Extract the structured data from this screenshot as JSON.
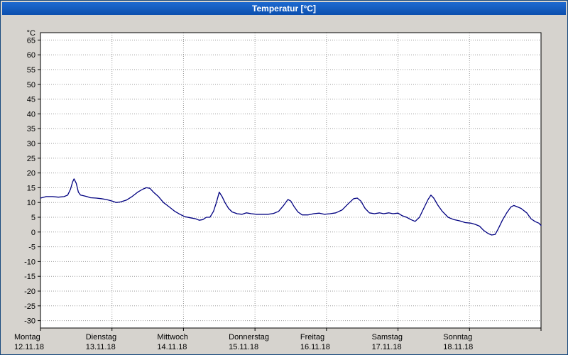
{
  "window": {
    "title": "Temperatur [°C]"
  },
  "colors": {
    "titlebar_top": "#1e6ad0",
    "titlebar_bottom": "#0c4fae",
    "line": "#000080",
    "grid": "#999999",
    "plot_background": "#ffffff",
    "plot_border": "#000000"
  },
  "chart_data": {
    "type": "line",
    "title": "Temperatur [°C]",
    "ylabel": "°C",
    "xlabel": "",
    "ylim": [
      -32.5,
      67.5
    ],
    "ytick_min": -30,
    "ytick_max": 65,
    "ytick_step": 5,
    "grid": "dotted",
    "legend": "none",
    "x_days": [
      {
        "name": "Montag",
        "date": "12.11.18"
      },
      {
        "name": "Dienstag",
        "date": "13.11.18"
      },
      {
        "name": "Mittwoch",
        "date": "14.11.18"
      },
      {
        "name": "Donnerstag",
        "date": "15.11.18"
      },
      {
        "name": "Freitag",
        "date": "16.11.18"
      },
      {
        "name": "Samstag",
        "date": "17.11.18"
      },
      {
        "name": "Sonntag",
        "date": "18.11.18"
      }
    ],
    "series": [
      {
        "name": "Temperatur",
        "color": "#000080",
        "points": [
          [
            0.0,
            11.5
          ],
          [
            0.08,
            12
          ],
          [
            0.17,
            12
          ],
          [
            0.25,
            11.8
          ],
          [
            0.33,
            12
          ],
          [
            0.38,
            12.5
          ],
          [
            0.42,
            14.5
          ],
          [
            0.45,
            17
          ],
          [
            0.47,
            18
          ],
          [
            0.5,
            16.5
          ],
          [
            0.53,
            13.5
          ],
          [
            0.56,
            12.5
          ],
          [
            0.6,
            12.3
          ],
          [
            0.65,
            12
          ],
          [
            0.7,
            11.6
          ],
          [
            0.78,
            11.5
          ],
          [
            0.85,
            11.3
          ],
          [
            0.92,
            11
          ],
          [
            1.0,
            10.5
          ],
          [
            1.06,
            10
          ],
          [
            1.12,
            10.2
          ],
          [
            1.2,
            10.8
          ],
          [
            1.28,
            12
          ],
          [
            1.36,
            13.5
          ],
          [
            1.43,
            14.5
          ],
          [
            1.48,
            15
          ],
          [
            1.53,
            14.8
          ],
          [
            1.58,
            13.5
          ],
          [
            1.65,
            12
          ],
          [
            1.72,
            10
          ],
          [
            1.8,
            8.5
          ],
          [
            1.88,
            7
          ],
          [
            1.95,
            6
          ],
          [
            2.02,
            5.2
          ],
          [
            2.1,
            4.8
          ],
          [
            2.17,
            4.5
          ],
          [
            2.22,
            4
          ],
          [
            2.27,
            4.2
          ],
          [
            2.32,
            5
          ],
          [
            2.37,
            5
          ],
          [
            2.42,
            7
          ],
          [
            2.46,
            10
          ],
          [
            2.5,
            13.5
          ],
          [
            2.54,
            12
          ],
          [
            2.58,
            10
          ],
          [
            2.63,
            8
          ],
          [
            2.68,
            6.8
          ],
          [
            2.75,
            6.2
          ],
          [
            2.82,
            6
          ],
          [
            2.88,
            6.5
          ],
          [
            2.95,
            6.2
          ],
          [
            3.02,
            6
          ],
          [
            3.1,
            6
          ],
          [
            3.18,
            6
          ],
          [
            3.26,
            6.3
          ],
          [
            3.33,
            7
          ],
          [
            3.4,
            9
          ],
          [
            3.46,
            11
          ],
          [
            3.5,
            10.5
          ],
          [
            3.55,
            8.5
          ],
          [
            3.6,
            6.8
          ],
          [
            3.66,
            5.8
          ],
          [
            3.74,
            5.8
          ],
          [
            3.82,
            6.2
          ],
          [
            3.9,
            6.4
          ],
          [
            3.97,
            6
          ],
          [
            4.05,
            6.2
          ],
          [
            4.13,
            6.5
          ],
          [
            4.22,
            7.5
          ],
          [
            4.3,
            9.5
          ],
          [
            4.38,
            11.3
          ],
          [
            4.43,
            11.5
          ],
          [
            4.48,
            10.5
          ],
          [
            4.54,
            8
          ],
          [
            4.6,
            6.5
          ],
          [
            4.67,
            6.2
          ],
          [
            4.74,
            6.5
          ],
          [
            4.8,
            6.2
          ],
          [
            4.87,
            6.5
          ],
          [
            4.93,
            6.2
          ],
          [
            5.0,
            6.4
          ],
          [
            5.06,
            5.5
          ],
          [
            5.12,
            5
          ],
          [
            5.18,
            4.2
          ],
          [
            5.24,
            3.6
          ],
          [
            5.3,
            5
          ],
          [
            5.36,
            8
          ],
          [
            5.42,
            11
          ],
          [
            5.46,
            12.5
          ],
          [
            5.5,
            11.5
          ],
          [
            5.56,
            9
          ],
          [
            5.62,
            7
          ],
          [
            5.7,
            5
          ],
          [
            5.78,
            4.2
          ],
          [
            5.86,
            3.8
          ],
          [
            5.94,
            3.2
          ],
          [
            6.02,
            3
          ],
          [
            6.08,
            2.6
          ],
          [
            6.14,
            2
          ],
          [
            6.2,
            0.5
          ],
          [
            6.26,
            -0.5
          ],
          [
            6.31,
            -1
          ],
          [
            6.36,
            -0.8
          ],
          [
            6.4,
            1
          ],
          [
            6.46,
            4
          ],
          [
            6.52,
            6.5
          ],
          [
            6.58,
            8.5
          ],
          [
            6.62,
            9
          ],
          [
            6.67,
            8.5
          ],
          [
            6.72,
            8
          ],
          [
            6.8,
            6.5
          ],
          [
            6.86,
            4.5
          ],
          [
            6.92,
            3.5
          ],
          [
            6.97,
            3
          ],
          [
            7.0,
            2.2
          ]
        ]
      }
    ]
  }
}
